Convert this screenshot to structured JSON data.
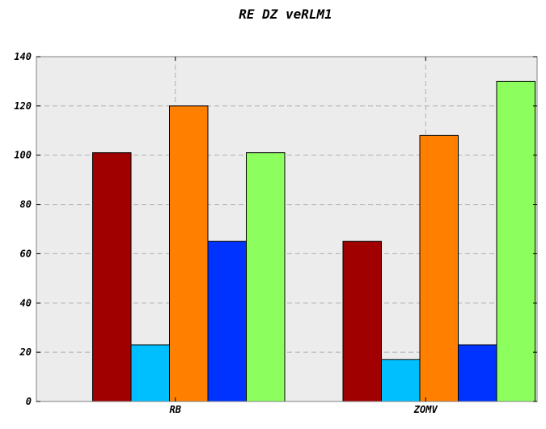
{
  "chart_data": {
    "type": "bar",
    "title": "RE DZ veRLM1",
    "xlabel": "",
    "ylabel": "",
    "categories": [
      "RB",
      "ZOMV"
    ],
    "ylim": [
      0,
      140
    ],
    "yticks": [
      0,
      20,
      40,
      60,
      80,
      100,
      120,
      140
    ],
    "grid": true,
    "legend": "none",
    "background_color": "#ececec",
    "series": [
      {
        "values": [
          101,
          65
        ],
        "color": "#a00000"
      },
      {
        "values": [
          23,
          17
        ],
        "color": "#00bfff"
      },
      {
        "values": [
          120,
          108
        ],
        "color": "#ff8000"
      },
      {
        "values": [
          65,
          23
        ],
        "color": "#0033ff"
      },
      {
        "values": [
          101,
          130
        ],
        "color": "#8cff5f"
      }
    ]
  }
}
